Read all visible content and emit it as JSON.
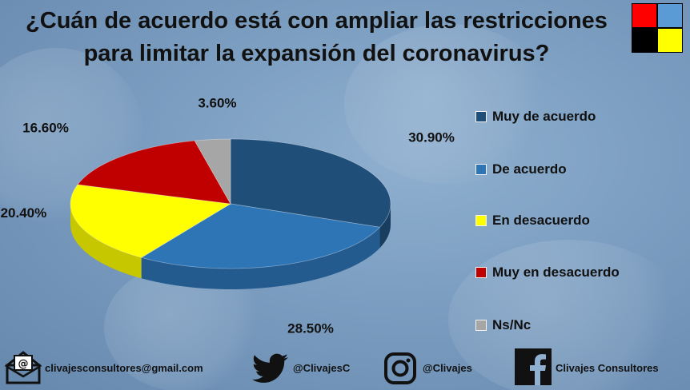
{
  "title": {
    "line1": "¿Cuán de acuerdo está con ampliar las restricciones",
    "line2": "para limitar la expansión del coronavirus?"
  },
  "chart_data": {
    "type": "pie",
    "style": "3d",
    "categories": [
      "Muy de acuerdo",
      "De acuerdo",
      "En desacuerdo",
      "Muy en desacuerdo",
      "Ns/Nc"
    ],
    "values": [
      30.9,
      28.5,
      20.4,
      16.6,
      3.6
    ],
    "data_labels": [
      "30.90%",
      "28.50%",
      "20.40%",
      "16.60%",
      "3.60%"
    ],
    "colors": [
      "#1f4e79",
      "#2e75b6",
      "#ffff00",
      "#c00000",
      "#a6a6a6"
    ],
    "legend_position": "right",
    "start": "top, clockwise"
  },
  "logo_colors": [
    "#ff0000",
    "#5b9bd5",
    "#000000",
    "#ffff00"
  ],
  "footer": {
    "email": "clivajesconsultores@gmail.com",
    "twitter": "@ClivajesC",
    "instagram": "@Clivajes",
    "facebook": "Clivajes Consultores",
    "icons": [
      "email-icon",
      "twitter-icon",
      "instagram-icon",
      "facebook-icon"
    ]
  }
}
